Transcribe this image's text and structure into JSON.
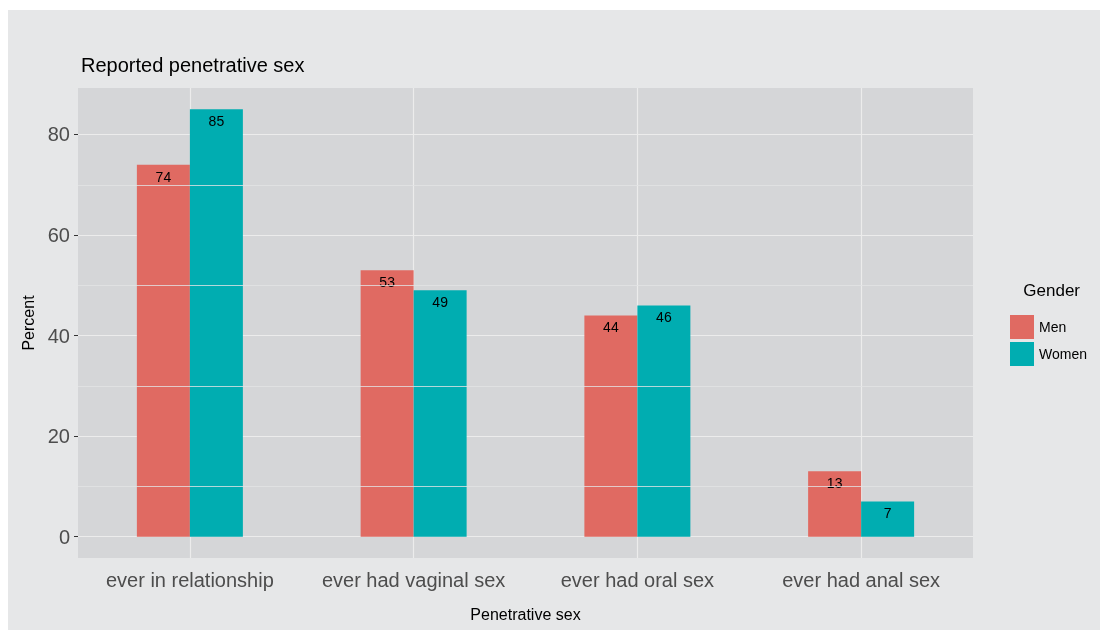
{
  "chart_data": {
    "type": "bar",
    "title": "Reported penetrative sex",
    "xlabel": "Penetrative sex",
    "ylabel": "Percent",
    "legend_title": "Gender",
    "categories": [
      "ever in relationship",
      "ever had vaginal sex",
      "ever had oral sex",
      "ever had anal sex"
    ],
    "series": [
      {
        "name": "Men",
        "color": "#e06a62",
        "values": [
          74,
          53,
          44,
          13
        ]
      },
      {
        "name": "Women",
        "color": "#00adb1",
        "values": [
          85,
          49,
          46,
          7
        ]
      }
    ],
    "ylim": [
      -4.25,
      89.25
    ],
    "yticks": [
      0,
      20,
      40,
      60,
      80
    ],
    "grid": true,
    "legend": "right",
    "data_labels": true
  }
}
